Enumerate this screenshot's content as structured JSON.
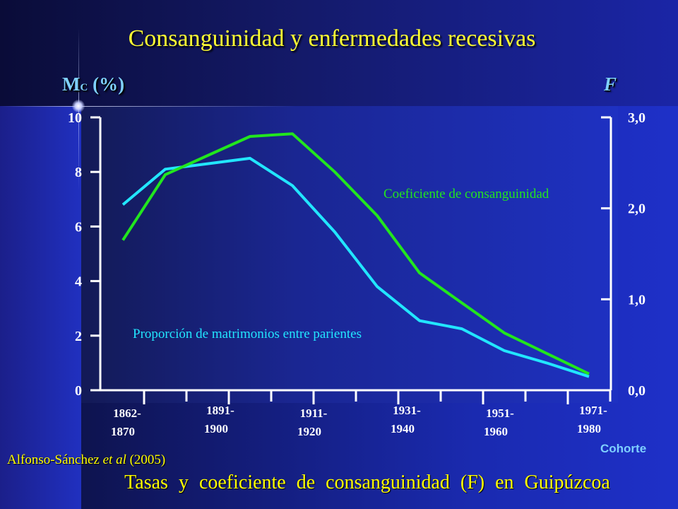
{
  "page": {
    "title": "Consanguinidad y enfermedades recesivas",
    "footer": "Tasas y coeficiente de consanguinidad (F) en Guipúzcoa",
    "credit_authors": "Alfonso-Sánchez ",
    "credit_etal": "et al",
    "credit_year": " (2005)"
  },
  "chart_data": {
    "type": "line",
    "title": "Consanguinidad y enfermedades recesivas",
    "ylabel": "M",
    "ylabel_sub": "C",
    "ylabel_suffix": " (%)",
    "y2label": "F",
    "xlabel": "Cohorte",
    "ylim": [
      0,
      10
    ],
    "y2lim": [
      0,
      3.0
    ],
    "yticks": [
      "0",
      "2",
      "4",
      "6",
      "8",
      "10"
    ],
    "y2ticks": [
      "0,0",
      "1,0",
      "2,0",
      "3,0"
    ],
    "x_labels": [
      {
        "top": "1862-",
        "bottom": "1870"
      },
      {
        "top": "1891-",
        "bottom": "1900"
      },
      {
        "top": "1911-",
        "bottom": "1920"
      },
      {
        "top": "1931-",
        "bottom": "1940"
      },
      {
        "top": "1951-",
        "bottom": "1960"
      },
      {
        "top": "1971-",
        "bottom": "1980"
      }
    ],
    "series": [
      {
        "name": "Proporción de matrimonios entre parientes",
        "color": "#22e6ff",
        "axis": "left",
        "values": [
          6.8,
          8.1,
          8.3,
          8.5,
          7.5,
          5.8,
          3.8,
          2.55,
          2.25,
          1.45,
          1.0,
          0.5
        ]
      },
      {
        "name": "Coeficiente de consanguinidad",
        "color": "#22e61e",
        "axis": "left",
        "values": [
          5.5,
          7.9,
          8.6,
          9.3,
          9.4,
          8.0,
          6.4,
          4.3,
          3.2,
          2.1,
          1.35,
          0.6
        ]
      }
    ],
    "grid": false
  }
}
